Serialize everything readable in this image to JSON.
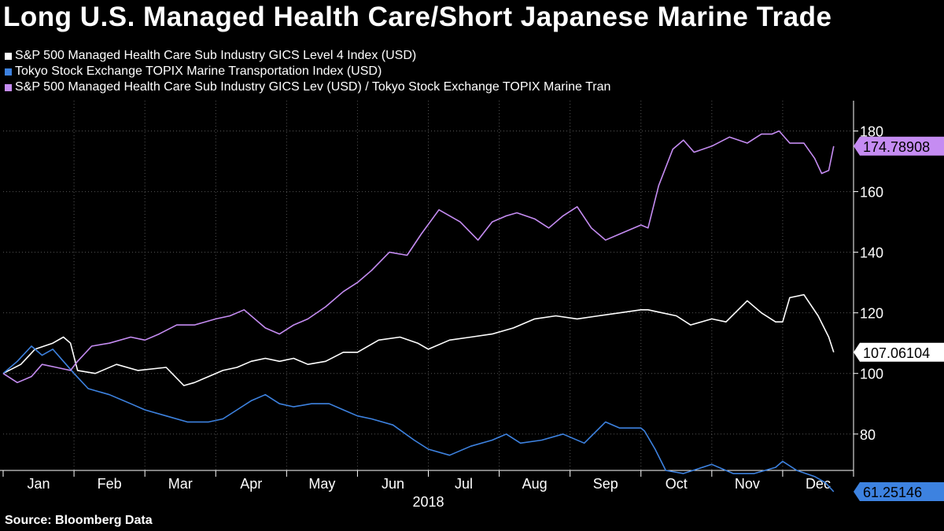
{
  "title": "Long U.S. Managed Health Care/Short Japanese Marine Trade",
  "source": "Source: Bloomberg Data",
  "colors": {
    "health": "#ffffff",
    "marine": "#3d82e0",
    "ratio": "#c58cf2",
    "background": "#000000"
  },
  "chart_data": {
    "type": "line",
    "title": "Long U.S. Managed Health Care/Short Japanese Marine Trade",
    "xlabel": "2018",
    "ylabel": "",
    "ylim": [
      68,
      190
    ],
    "yticks": [
      80,
      100,
      120,
      140,
      160,
      180
    ],
    "months": [
      "Jan",
      "Feb",
      "Mar",
      "Apr",
      "May",
      "Jun",
      "Jul",
      "Aug",
      "Sep",
      "Oct",
      "Nov",
      "Dec"
    ],
    "month_starts": [
      0,
      1,
      2,
      3,
      4,
      5,
      6,
      7,
      8,
      9,
      10,
      11,
      12
    ],
    "series": [
      {
        "name": "S&P 500 Managed Health Care Sub Industry GICS Level 4 Index (USD)",
        "color": "#ffffff",
        "last_label": "107.06104",
        "x": [
          0.0,
          0.25,
          0.45,
          0.7,
          0.85,
          0.95,
          1.05,
          1.3,
          1.6,
          1.9,
          2.3,
          2.55,
          2.7,
          2.9,
          3.1,
          3.3,
          3.5,
          3.7,
          3.9,
          4.1,
          4.3,
          4.55,
          4.8,
          5.0,
          5.3,
          5.6,
          5.85,
          6.0,
          6.3,
          6.6,
          6.9,
          7.2,
          7.5,
          7.8,
          8.1,
          8.4,
          8.7,
          9.0,
          9.1,
          9.3,
          9.5,
          9.7,
          10.0,
          10.2,
          10.5,
          10.7,
          10.9,
          11.0,
          11.1,
          11.3,
          11.5,
          11.65,
          11.72
        ],
        "y": [
          100,
          103,
          108,
          110,
          112,
          110,
          101,
          100,
          103,
          101,
          102,
          96,
          97,
          99,
          101,
          102,
          104,
          105,
          104,
          105,
          103,
          104,
          107,
          107,
          111,
          112,
          110,
          108,
          111,
          112,
          113,
          115,
          118,
          119,
          118,
          119,
          120,
          121,
          121,
          120,
          119,
          116,
          118,
          117,
          124,
          120,
          117,
          117,
          125,
          126,
          119,
          112,
          107
        ]
      },
      {
        "name": "Tokyo Stock Exchange TOPIX Marine Transportation Index (USD)",
        "color": "#3d82e0",
        "last_label": "61.25146",
        "x": [
          0.0,
          0.2,
          0.4,
          0.55,
          0.7,
          0.85,
          1.0,
          1.2,
          1.5,
          1.8,
          2.0,
          2.3,
          2.6,
          2.9,
          3.1,
          3.3,
          3.5,
          3.7,
          3.9,
          4.1,
          4.35,
          4.6,
          4.8,
          5.0,
          5.2,
          5.5,
          5.8,
          6.0,
          6.3,
          6.6,
          6.9,
          7.1,
          7.3,
          7.6,
          7.9,
          8.2,
          8.5,
          8.7,
          9.0,
          9.05,
          9.2,
          9.35,
          9.6,
          10.0,
          10.3,
          10.6,
          10.9,
          11.0,
          11.2,
          11.45,
          11.6,
          11.72
        ],
        "y": [
          100,
          104,
          109,
          106,
          108,
          104,
          100,
          95,
          93,
          90,
          88,
          86,
          84,
          84,
          85,
          88,
          91,
          93,
          90,
          89,
          90,
          90,
          88,
          86,
          85,
          83,
          78,
          75,
          73,
          76,
          78,
          80,
          77,
          78,
          80,
          77,
          84,
          82,
          82,
          81,
          75,
          68,
          67,
          70,
          67,
          67,
          69,
          71,
          68,
          66,
          64,
          61
        ]
      },
      {
        "name": "S&P 500 Managed Health Care Sub Industry GICS Lev (USD) / Tokyo Stock Exchange TOPIX Marine Tran",
        "color": "#c58cf2",
        "last_label": "174.78908",
        "x": [
          0.0,
          0.2,
          0.4,
          0.55,
          0.75,
          0.95,
          1.05,
          1.25,
          1.5,
          1.8,
          2.0,
          2.2,
          2.45,
          2.7,
          3.0,
          3.2,
          3.4,
          3.7,
          3.9,
          4.1,
          4.3,
          4.55,
          4.8,
          5.0,
          5.2,
          5.45,
          5.7,
          5.9,
          6.15,
          6.45,
          6.7,
          6.9,
          7.1,
          7.25,
          7.5,
          7.7,
          7.9,
          8.1,
          8.3,
          8.5,
          8.7,
          9.0,
          9.1,
          9.25,
          9.45,
          9.6,
          9.75,
          10.0,
          10.25,
          10.5,
          10.7,
          10.85,
          10.95,
          11.1,
          11.3,
          11.45,
          11.55,
          11.65,
          11.72
        ],
        "y": [
          100,
          97,
          99,
          103,
          102,
          101,
          104,
          109,
          110,
          112,
          111,
          113,
          116,
          116,
          118,
          119,
          121,
          115,
          113,
          116,
          118,
          122,
          127,
          130,
          134,
          140,
          139,
          146,
          154,
          150,
          144,
          150,
          152,
          153,
          151,
          148,
          152,
          155,
          148,
          144,
          146,
          149,
          148,
          162,
          174,
          177,
          173,
          175,
          178,
          176,
          179,
          179,
          180,
          176,
          176,
          171,
          166,
          167,
          175
        ]
      }
    ]
  }
}
